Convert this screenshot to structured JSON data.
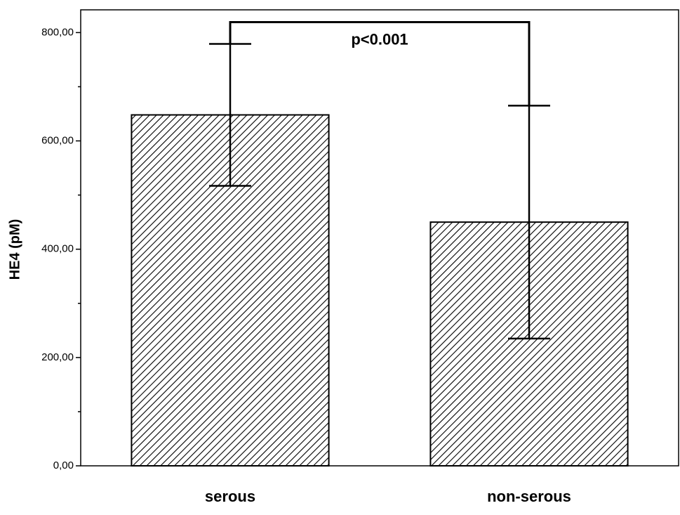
{
  "chart_data": {
    "type": "bar",
    "ylabel": "HE4 (pM)",
    "annotation": "p<0.001",
    "categories": [
      "serous",
      "non-serous"
    ],
    "values": [
      648,
      450
    ],
    "errors": [
      131,
      215
    ],
    "color": "#ffffff",
    "ylim": [
      0,
      842
    ],
    "yticks": [
      {
        "value": 0,
        "label": "0,00"
      },
      {
        "value": 200,
        "label": "200,00"
      },
      {
        "value": 400,
        "label": "400,00"
      },
      {
        "value": 600,
        "label": "600,00"
      },
      {
        "value": 800,
        "label": "800,00"
      }
    ],
    "minor_yticks": [
      100,
      300,
      500,
      700
    ],
    "grid": false
  }
}
